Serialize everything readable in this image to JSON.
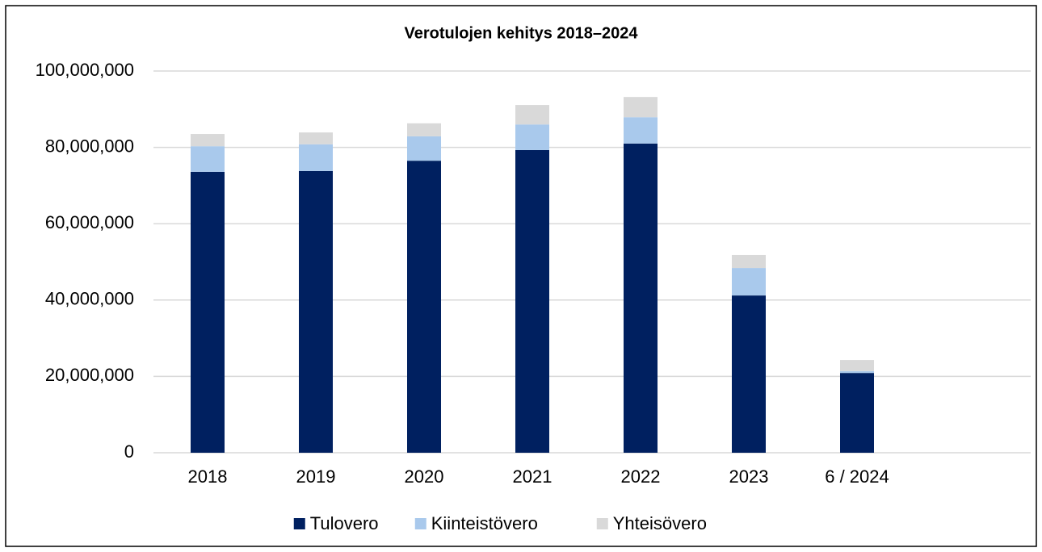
{
  "chart_data": {
    "type": "stacked_bar",
    "title": "Verotulojen kehitys 2018–2024",
    "categories": [
      "2018",
      "2019",
      "2020",
      "2021",
      "2022",
      "2023",
      "6 / 2024",
      null
    ],
    "series": [
      {
        "name": "Tulovero",
        "color": "#002060",
        "values": [
          73600000,
          73800000,
          76500000,
          79300000,
          81000000,
          41200000,
          20900000,
          null
        ]
      },
      {
        "name": "Kiinteistövero",
        "color": "#a9c9ec",
        "values": [
          6700000,
          7000000,
          6400000,
          6700000,
          6900000,
          7200000,
          500000,
          null
        ]
      },
      {
        "name": "Yhteisövero",
        "color": "#d9d9d9",
        "values": [
          3200000,
          3100000,
          3400000,
          5100000,
          5300000,
          3400000,
          2900000,
          null
        ]
      }
    ],
    "ylim": [
      0,
      100000000
    ],
    "yticks": [
      0,
      {
        "value": 20000000,
        "label": "20,000,000"
      },
      {
        "value": 40000000,
        "label": "40,000,000"
      },
      {
        "value": 60000000,
        "label": "60,000,000"
      },
      {
        "value": 80000000,
        "label": "80,000,000"
      },
      {
        "value": 100000000,
        "label": "100,000,000"
      }
    ],
    "grid": true,
    "legend": "bottom"
  }
}
